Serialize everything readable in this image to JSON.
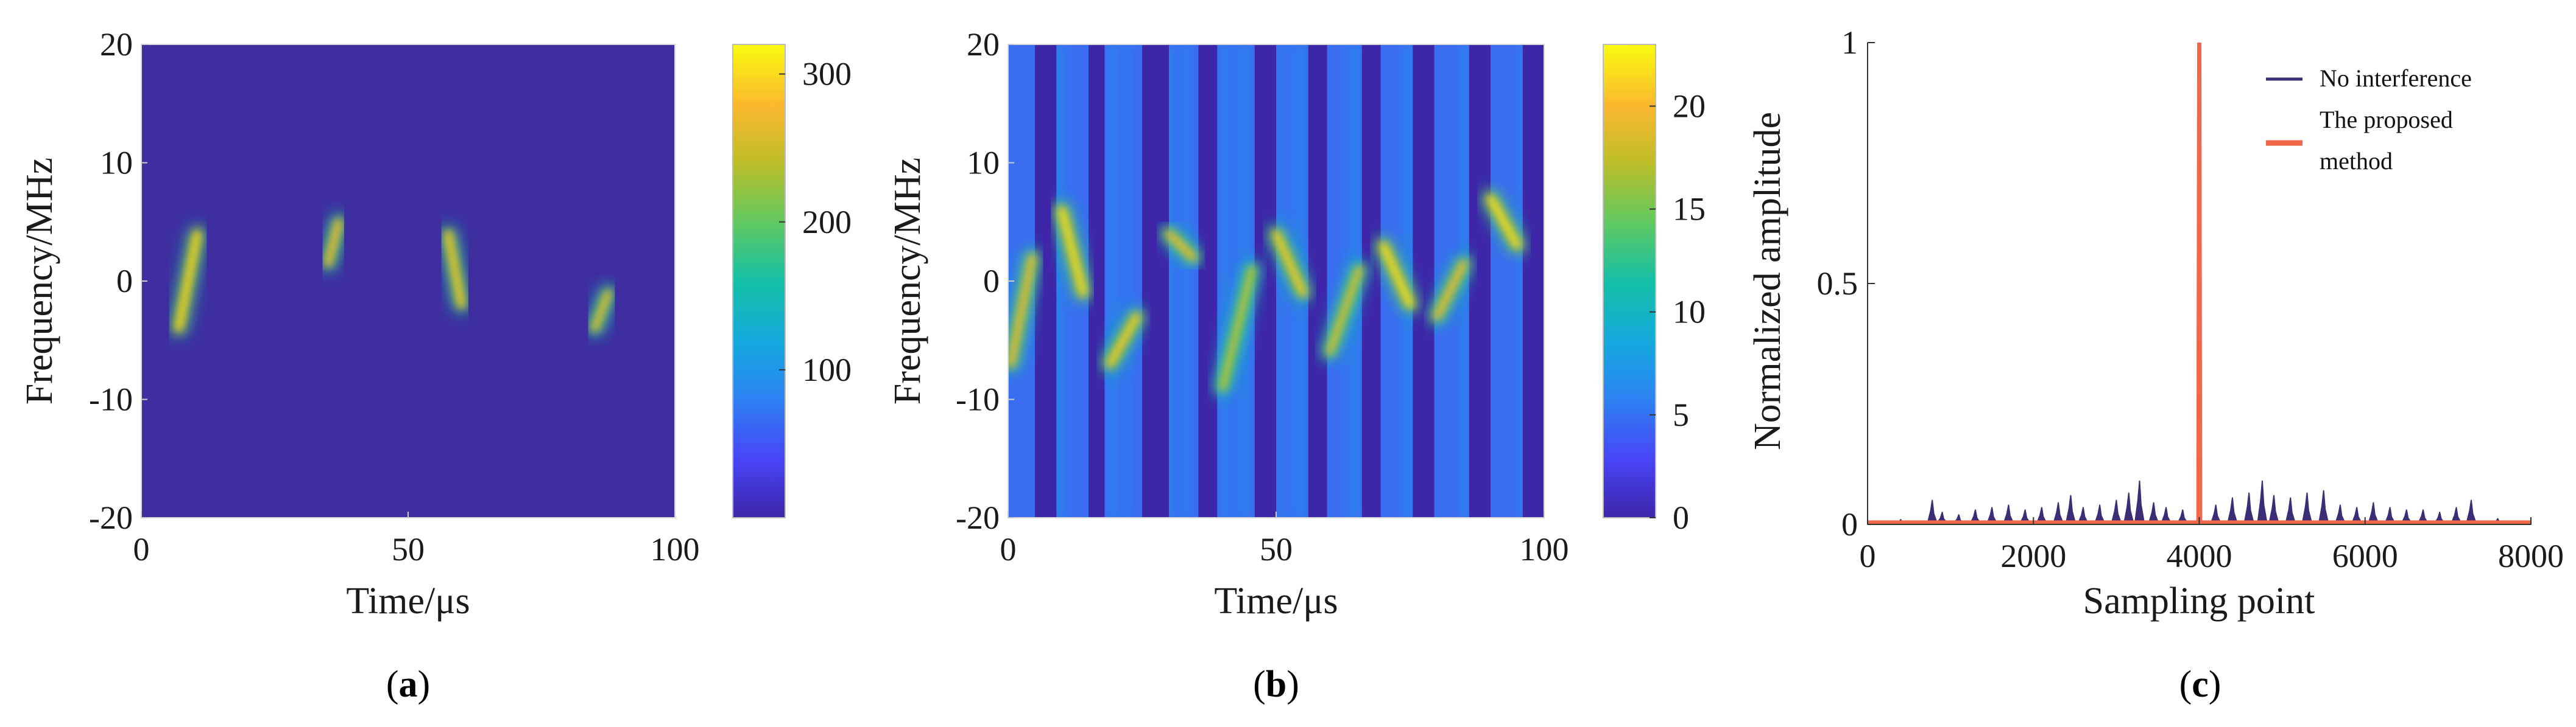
{
  "colors": {
    "parula": [
      "#3e26a8",
      "#4743f6",
      "#2e82f4",
      "#13a9dd",
      "#14bfa6",
      "#5dc963",
      "#bdbe28",
      "#fbb72e",
      "#f9fb0e"
    ],
    "background_a": "#3f2ea0",
    "series_no_interference": "#3c2d76",
    "series_proposed": "#f4664a"
  },
  "chart_data": [
    {
      "type": "heatmap",
      "panel_label": "(a)",
      "panel_letter": "a",
      "xlabel": "Time/μs",
      "ylabel": "Frequency/MHz",
      "xlim": [
        0,
        100
      ],
      "ylim": [
        -20,
        20
      ],
      "x_ticks": [
        "0",
        "50",
        "100"
      ],
      "y_ticks": [
        "20",
        "10",
        "0",
        "-10",
        "-20"
      ],
      "colorbar": {
        "min": 0,
        "max": 320,
        "ticks": [
          "100",
          "200",
          "300"
        ],
        "tick_values": [
          100,
          200,
          300
        ]
      },
      "chirps": [
        {
          "t_start": 7,
          "t_end": 10.5,
          "f_start": -4,
          "f_end": 4,
          "intensity": 300
        },
        {
          "t_start": 35,
          "t_end": 37,
          "f_start": 1.5,
          "f_end": 5,
          "intensity": 280
        },
        {
          "t_start": 57.5,
          "t_end": 60,
          "f_start": 4,
          "f_end": -2,
          "intensity": 290
        },
        {
          "t_start": 85,
          "t_end": 87.5,
          "f_start": -4,
          "f_end": -1,
          "intensity": 270
        }
      ]
    },
    {
      "type": "heatmap",
      "panel_label": "(b)",
      "panel_letter": "b",
      "xlabel": "Time/μs",
      "ylabel": "Frequency/MHz",
      "xlim": [
        0,
        100
      ],
      "ylim": [
        -20,
        20
      ],
      "x_ticks": [
        "0",
        "50",
        "100"
      ],
      "y_ticks": [
        "20",
        "10",
        "0",
        "-10",
        "-20"
      ],
      "colorbar": {
        "min": 0,
        "max": 23,
        "ticks": [
          "0",
          "5",
          "10",
          "15",
          "20"
        ],
        "tick_values": [
          0,
          5,
          10,
          15,
          20
        ]
      },
      "blank_slots": [
        [
          5,
          9
        ],
        [
          15,
          18
        ],
        [
          25,
          30
        ],
        [
          35.5,
          39
        ],
        [
          46,
          50
        ],
        [
          56,
          59.5
        ],
        [
          66,
          69.5
        ],
        [
          75.5,
          79.5
        ],
        [
          86,
          90
        ],
        [
          96,
          100
        ]
      ],
      "chirps": [
        {
          "t_start": 0.5,
          "t_end": 4.5,
          "f_start": -7,
          "f_end": 2,
          "intensity": 20
        },
        {
          "t_start": 10,
          "t_end": 14,
          "f_start": 6,
          "f_end": -1,
          "intensity": 22
        },
        {
          "t_start": 19,
          "t_end": 24,
          "f_start": -7,
          "f_end": -3,
          "intensity": 21
        },
        {
          "t_start": 30,
          "t_end": 34.5,
          "f_start": 4,
          "f_end": 2,
          "intensity": 20
        },
        {
          "t_start": 40,
          "t_end": 45.5,
          "f_start": -9,
          "f_end": 1,
          "intensity": 18
        },
        {
          "t_start": 50,
          "t_end": 55,
          "f_start": 4,
          "f_end": -1,
          "intensity": 21
        },
        {
          "t_start": 60,
          "t_end": 65.5,
          "f_start": -6,
          "f_end": 1,
          "intensity": 19
        },
        {
          "t_start": 70,
          "t_end": 75,
          "f_start": 3,
          "f_end": -2,
          "intensity": 22
        },
        {
          "t_start": 80,
          "t_end": 85,
          "f_start": -3,
          "f_end": 1.5,
          "intensity": 20
        },
        {
          "t_start": 90,
          "t_end": 95,
          "f_start": 7,
          "f_end": 3,
          "intensity": 22
        }
      ]
    },
    {
      "type": "line",
      "panel_label": "(c)",
      "panel_letter": "c",
      "xlabel": "Sampling point",
      "ylabel": "Normalized amplitude",
      "xlim": [
        0,
        8000
      ],
      "ylim": [
        0,
        1
      ],
      "x_ticks": [
        "0",
        "2000",
        "4000",
        "6000",
        "8000"
      ],
      "x_tick_values": [
        0,
        2000,
        4000,
        6000,
        8000
      ],
      "y_ticks": [
        "0",
        "0.5",
        "1"
      ],
      "y_tick_values": [
        0,
        0.5,
        1
      ],
      "legend": {
        "position": "top-right",
        "entries": [
          "No interference",
          "The proposed method"
        ]
      },
      "series": [
        {
          "name": "No interference",
          "peak_points": [
            [
              400,
              0.01
            ],
            [
              780,
              0.05
            ],
            [
              900,
              0.025
            ],
            [
              1100,
              0.02
            ],
            [
              1300,
              0.03
            ],
            [
              1500,
              0.035
            ],
            [
              1700,
              0.04
            ],
            [
              1900,
              0.03
            ],
            [
              2100,
              0.035
            ],
            [
              2300,
              0.045
            ],
            [
              2450,
              0.06
            ],
            [
              2600,
              0.035
            ],
            [
              2800,
              0.04
            ],
            [
              3000,
              0.05
            ],
            [
              3150,
              0.065
            ],
            [
              3280,
              0.09
            ],
            [
              3450,
              0.045
            ],
            [
              3600,
              0.035
            ],
            [
              3800,
              0.03
            ],
            [
              4200,
              0.04
            ],
            [
              4400,
              0.055
            ],
            [
              4600,
              0.065
            ],
            [
              4760,
              0.09
            ],
            [
              4900,
              0.06
            ],
            [
              5100,
              0.055
            ],
            [
              5300,
              0.065
            ],
            [
              5500,
              0.07
            ],
            [
              5700,
              0.04
            ],
            [
              5900,
              0.035
            ],
            [
              6100,
              0.045
            ],
            [
              6300,
              0.035
            ],
            [
              6500,
              0.03
            ],
            [
              6700,
              0.03
            ],
            [
              6900,
              0.025
            ],
            [
              7100,
              0.035
            ],
            [
              7280,
              0.05
            ],
            [
              7600,
              0.012
            ]
          ]
        },
        {
          "name": "The proposed method",
          "peak_points": [
            [
              3990,
              0
            ],
            [
              4000,
              1
            ],
            [
              4010,
              0
            ]
          ],
          "baseline": 0.004
        }
      ]
    }
  ]
}
